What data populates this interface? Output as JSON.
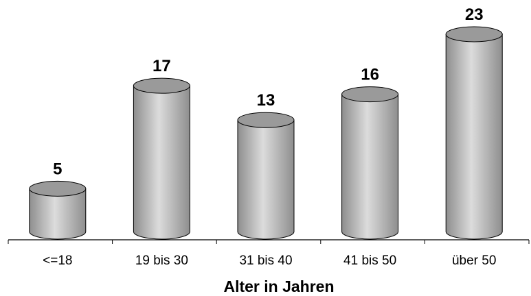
{
  "chart_data": {
    "type": "bar",
    "style": "3d-cylinder",
    "categories": [
      "<=18",
      "19 bis 30",
      "31 bis 40",
      "41 bis 50",
      "über 50"
    ],
    "values": [
      5,
      17,
      13,
      16,
      23
    ],
    "xlabel": "Alter in Jahren",
    "ylabel": "",
    "ylim": [
      0,
      23
    ],
    "grid": false,
    "legend": "none",
    "data_labels": true,
    "colors": {
      "body_dark": "#8e8e8e",
      "body_light": "#dcdcdc",
      "top": "#9a9a9a",
      "outline": "#000000",
      "axis": "#000000"
    }
  }
}
